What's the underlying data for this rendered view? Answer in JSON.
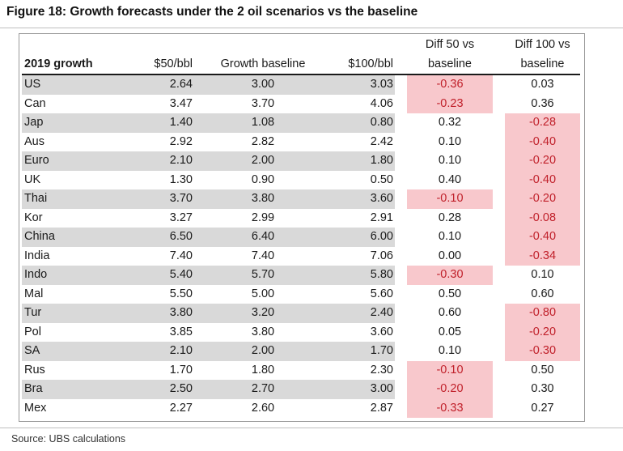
{
  "figure": {
    "title": "Figure 18: Growth forecasts under the 2 oil scenarios vs the baseline",
    "source": "Source:  UBS calculations"
  },
  "table": {
    "headers": {
      "label": "2019 growth",
      "c1": "$50/bbl",
      "c2": "Growth baseline",
      "c3": "$100/bbl",
      "d1_top": "Diff 50 vs",
      "d1_bottom": "baseline",
      "d2_top": "Diff 100 vs",
      "d2_bottom": "baseline"
    },
    "rows": [
      {
        "country": "US",
        "v50": "2.64",
        "base": "3.00",
        "v100": "3.03",
        "d50": "-0.36",
        "d100": "0.03"
      },
      {
        "country": "Can",
        "v50": "3.47",
        "base": "3.70",
        "v100": "4.06",
        "d50": "-0.23",
        "d100": "0.36"
      },
      {
        "country": "Jap",
        "v50": "1.40",
        "base": "1.08",
        "v100": "0.80",
        "d50": "0.32",
        "d100": "-0.28"
      },
      {
        "country": "Aus",
        "v50": "2.92",
        "base": "2.82",
        "v100": "2.42",
        "d50": "0.10",
        "d100": "-0.40"
      },
      {
        "country": "Euro",
        "v50": "2.10",
        "base": "2.00",
        "v100": "1.80",
        "d50": "0.10",
        "d100": "-0.20"
      },
      {
        "country": "UK",
        "v50": "1.30",
        "base": "0.90",
        "v100": "0.50",
        "d50": "0.40",
        "d100": "-0.40"
      },
      {
        "country": "Thai",
        "v50": "3.70",
        "base": "3.80",
        "v100": "3.60",
        "d50": "-0.10",
        "d100": "-0.20"
      },
      {
        "country": "Kor",
        "v50": "3.27",
        "base": "2.99",
        "v100": "2.91",
        "d50": "0.28",
        "d100": "-0.08"
      },
      {
        "country": "China",
        "v50": "6.50",
        "base": "6.40",
        "v100": "6.00",
        "d50": "0.10",
        "d100": "-0.40"
      },
      {
        "country": "India",
        "v50": "7.40",
        "base": "7.40",
        "v100": "7.06",
        "d50": "0.00",
        "d100": "-0.34"
      },
      {
        "country": "Indo",
        "v50": "5.40",
        "base": "5.70",
        "v100": "5.80",
        "d50": "-0.30",
        "d100": "0.10"
      },
      {
        "country": "Mal",
        "v50": "5.50",
        "base": "5.00",
        "v100": "5.60",
        "d50": "0.50",
        "d100": "0.60"
      },
      {
        "country": "Tur",
        "v50": "3.80",
        "base": "3.20",
        "v100": "2.40",
        "d50": "0.60",
        "d100": "-0.80"
      },
      {
        "country": "Pol",
        "v50": "3.85",
        "base": "3.80",
        "v100": "3.60",
        "d50": "0.05",
        "d100": "-0.20"
      },
      {
        "country": "SA",
        "v50": "2.10",
        "base": "2.00",
        "v100": "1.70",
        "d50": "0.10",
        "d100": "-0.30"
      },
      {
        "country": "Rus",
        "v50": "1.70",
        "base": "1.80",
        "v100": "2.30",
        "d50": "-0.10",
        "d100": "0.50"
      },
      {
        "country": "Bra",
        "v50": "2.50",
        "base": "2.70",
        "v100": "3.00",
        "d50": "-0.20",
        "d100": "0.30"
      },
      {
        "country": "Mex",
        "v50": "2.27",
        "base": "2.60",
        "v100": "2.87",
        "d50": "-0.33",
        "d100": "0.27"
      }
    ]
  },
  "colors": {
    "row_shade": "#d9d9d9",
    "negative_fill": "#f8c8cc",
    "negative_text": "#c0202a"
  }
}
